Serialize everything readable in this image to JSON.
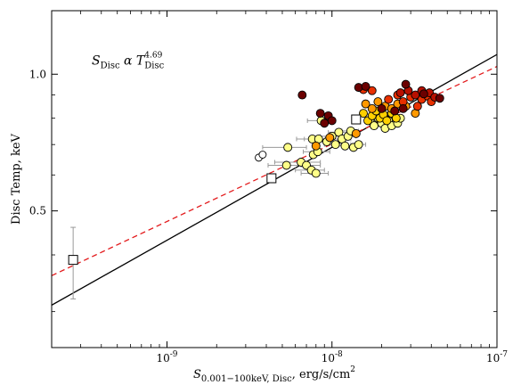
{
  "chart_data": {
    "type": "scatter",
    "x_scale": "log",
    "y_scale": "log",
    "xlim": [
      2e-10,
      1e-07
    ],
    "ylim": [
      0.25,
      1.38
    ],
    "xlabel": "S",
    "xlabel_sub": "0.001−100keV, Disc",
    "xlabel_units": ", erg/s/cm",
    "xlabel_sup": "2",
    "ylabel": "Disc Temp, keV",
    "x_ticks": [
      {
        "value": 1e-09,
        "base": "10",
        "exp": "-9"
      },
      {
        "value": 1e-08,
        "base": "10",
        "exp": "-8"
      },
      {
        "value": 1e-07,
        "base": "10",
        "exp": "-7"
      }
    ],
    "y_ticks": [
      {
        "value": 0.5,
        "label": "0.5"
      },
      {
        "value": 1.0,
        "label": "1.0"
      }
    ],
    "annotation": {
      "S": "S",
      "S_sub": "Disc",
      "alpha": " α ",
      "T": "T",
      "T_sub": "Disc",
      "T_sup": "4.69",
      "x": 3.5e-10,
      "y": 1.05
    },
    "fit_lines": [
      {
        "style": "solid",
        "color": "#000000",
        "x": [
          2e-10,
          1e-07
        ],
        "y": [
          0.31,
          1.105
        ]
      },
      {
        "style": "dashed",
        "color": "#e31a1c",
        "x": [
          2e-10,
          1e-07
        ],
        "y": [
          0.36,
          1.04
        ]
      }
    ],
    "squares": [
      {
        "x": 2.7e-10,
        "y": 0.39,
        "yerr_lo": 0.07,
        "yerr_hi": 0.07
      },
      {
        "x": 4.3e-09,
        "y": 0.59
      },
      {
        "x": 1.4e-08,
        "y": 0.795
      }
    ],
    "open_circles": [
      {
        "x": 3.6e-09,
        "y": 0.655
      },
      {
        "x": 3.8e-09,
        "y": 0.665
      }
    ],
    "points": [
      {
        "x": 5.4e-09,
        "y": 0.69,
        "c": "#ffff88",
        "xerr": 1.6e-09
      },
      {
        "x": 5.3e-09,
        "y": 0.63,
        "c": "#ffff88",
        "xerr": 1.2e-09
      },
      {
        "x": 6.5e-09,
        "y": 0.64,
        "c": "#ffff88",
        "xerr": 2e-09
      },
      {
        "x": 7e-09,
        "y": 0.63,
        "c": "#ffff88",
        "xerr": 1.5e-09
      },
      {
        "x": 7.5e-09,
        "y": 0.615,
        "c": "#ffff88",
        "xerr": 1.5e-09
      },
      {
        "x": 8e-09,
        "y": 0.605,
        "c": "#ffff88",
        "xerr": 1.5e-09
      },
      {
        "x": 7.7e-09,
        "y": 0.665,
        "c": "#ffff88"
      },
      {
        "x": 8.2e-09,
        "y": 0.675,
        "c": "#ffff88",
        "xerr": 1.5e-09
      },
      {
        "x": 7.6e-09,
        "y": 0.72,
        "c": "#ffff88",
        "xerr": 1.5e-09
      },
      {
        "x": 8.3e-09,
        "y": 0.72,
        "c": "#ffff88",
        "xerr": 1.5e-09
      },
      {
        "x": 8.6e-09,
        "y": 0.79,
        "c": "#ffff88",
        "xerr": 1.5e-09
      },
      {
        "x": 9.3e-09,
        "y": 0.71,
        "c": "#ffff88",
        "xerr": 1.5e-09
      },
      {
        "x": 1e-08,
        "y": 0.73,
        "c": "#ffff88",
        "xerr": 1.5e-09
      },
      {
        "x": 1.05e-08,
        "y": 0.7,
        "c": "#ffff88",
        "xerr": 1.5e-09
      },
      {
        "x": 1.1e-08,
        "y": 0.745,
        "c": "#ffff88",
        "xerr": 1.5e-09
      },
      {
        "x": 1.15e-08,
        "y": 0.72,
        "c": "#ffff88",
        "xerr": 1.5e-09
      },
      {
        "x": 1.2e-08,
        "y": 0.695,
        "c": "#ffff88",
        "xerr": 1.5e-09
      },
      {
        "x": 1.25e-08,
        "y": 0.73,
        "c": "#ffff88",
        "xerr": 1.5e-09
      },
      {
        "x": 1.3e-08,
        "y": 0.75,
        "c": "#ffff88",
        "xerr": 1.5e-09
      },
      {
        "x": 1.35e-08,
        "y": 0.69,
        "c": "#ffff88",
        "xerr": 1.5e-09
      },
      {
        "x": 1.45e-08,
        "y": 0.7,
        "c": "#ffff88",
        "xerr": 1.5e-09
      },
      {
        "x": 1.7e-08,
        "y": 0.79,
        "c": "#ffff88"
      },
      {
        "x": 1.8e-08,
        "y": 0.77,
        "c": "#ffff88"
      },
      {
        "x": 1.9e-08,
        "y": 0.8,
        "c": "#ffff88"
      },
      {
        "x": 2e-08,
        "y": 0.78,
        "c": "#ffff88"
      },
      {
        "x": 2.1e-08,
        "y": 0.76,
        "c": "#ffff88"
      },
      {
        "x": 2.2e-08,
        "y": 0.79,
        "c": "#ffff88"
      },
      {
        "x": 2.3e-08,
        "y": 0.77,
        "c": "#ffff88"
      },
      {
        "x": 2.5e-08,
        "y": 0.78,
        "c": "#ffff88"
      },
      {
        "x": 2.6e-08,
        "y": 0.8,
        "c": "#ffff88"
      },
      {
        "x": 1.55e-08,
        "y": 0.82,
        "c": "#ffd000"
      },
      {
        "x": 1.65e-08,
        "y": 0.79,
        "c": "#ffd000"
      },
      {
        "x": 1.75e-08,
        "y": 0.81,
        "c": "#ffd000"
      },
      {
        "x": 1.85e-08,
        "y": 0.83,
        "c": "#ffd000"
      },
      {
        "x": 1.95e-08,
        "y": 0.8,
        "c": "#ffd000"
      },
      {
        "x": 2.05e-08,
        "y": 0.815,
        "c": "#ffd000"
      },
      {
        "x": 2.15e-08,
        "y": 0.79,
        "c": "#ffd000"
      },
      {
        "x": 2.3e-08,
        "y": 0.82,
        "c": "#ffd000"
      },
      {
        "x": 2.45e-08,
        "y": 0.8,
        "c": "#ffd000"
      },
      {
        "x": 1.6e-08,
        "y": 0.86,
        "c": "#ff9900"
      },
      {
        "x": 1.75e-08,
        "y": 0.84,
        "c": "#ff9900"
      },
      {
        "x": 1.9e-08,
        "y": 0.87,
        "c": "#ff9900"
      },
      {
        "x": 2.1e-08,
        "y": 0.85,
        "c": "#ff9900"
      },
      {
        "x": 2.3e-08,
        "y": 0.84,
        "c": "#ff9900"
      },
      {
        "x": 2.5e-08,
        "y": 0.86,
        "c": "#ff9900"
      },
      {
        "x": 2.8e-08,
        "y": 0.85,
        "c": "#ff9900"
      },
      {
        "x": 3.2e-08,
        "y": 0.82,
        "c": "#ff9900"
      },
      {
        "x": 1.55e-08,
        "y": 0.925,
        "c": "#e83000"
      },
      {
        "x": 1.75e-08,
        "y": 0.92,
        "c": "#e83000"
      },
      {
        "x": 2.2e-08,
        "y": 0.88,
        "c": "#e83000"
      },
      {
        "x": 2.5e-08,
        "y": 0.9,
        "c": "#e83000"
      },
      {
        "x": 2.7e-08,
        "y": 0.87,
        "c": "#e83000"
      },
      {
        "x": 3e-08,
        "y": 0.89,
        "c": "#e83000"
      },
      {
        "x": 3.3e-08,
        "y": 0.85,
        "c": "#e83000"
      },
      {
        "x": 3.5e-08,
        "y": 0.88,
        "c": "#e83000"
      },
      {
        "x": 3.8e-08,
        "y": 0.895,
        "c": "#e83000"
      },
      {
        "x": 4e-08,
        "y": 0.87,
        "c": "#e83000"
      },
      {
        "x": 2.9e-08,
        "y": 0.92,
        "c": "#b81000"
      },
      {
        "x": 3.2e-08,
        "y": 0.9,
        "c": "#b81000"
      },
      {
        "x": 3.5e-08,
        "y": 0.92,
        "c": "#b81000"
      },
      {
        "x": 3.9e-08,
        "y": 0.91,
        "c": "#b81000"
      },
      {
        "x": 4.2e-08,
        "y": 0.89,
        "c": "#b81000"
      },
      {
        "x": 2.6e-08,
        "y": 0.91,
        "c": "#b81000"
      },
      {
        "x": 6.6e-09,
        "y": 0.9,
        "c": "#6b0000"
      },
      {
        "x": 8.5e-09,
        "y": 0.82,
        "c": "#6b0000"
      },
      {
        "x": 9e-09,
        "y": 0.78,
        "c": "#6b0000"
      },
      {
        "x": 9.5e-09,
        "y": 0.81,
        "c": "#6b0000"
      },
      {
        "x": 1e-08,
        "y": 0.79,
        "c": "#6b0000"
      },
      {
        "x": 1.45e-08,
        "y": 0.935,
        "c": "#6b0000"
      },
      {
        "x": 1.6e-08,
        "y": 0.94,
        "c": "#6b0000"
      },
      {
        "x": 2e-08,
        "y": 0.84,
        "c": "#6b0000"
      },
      {
        "x": 2.4e-08,
        "y": 0.83,
        "c": "#6b0000"
      },
      {
        "x": 2.7e-08,
        "y": 0.84,
        "c": "#6b0000"
      },
      {
        "x": 2.8e-08,
        "y": 0.95,
        "c": "#6b0000"
      },
      {
        "x": 3.6e-08,
        "y": 0.905,
        "c": "#6b0000"
      },
      {
        "x": 4.5e-08,
        "y": 0.885,
        "c": "#6b0000"
      },
      {
        "x": 8e-09,
        "y": 0.695,
        "c": "#ff9900"
      },
      {
        "x": 9.7e-09,
        "y": 0.725,
        "c": "#ff9900"
      },
      {
        "x": 1.4e-08,
        "y": 0.74,
        "c": "#ff9900"
      }
    ]
  }
}
